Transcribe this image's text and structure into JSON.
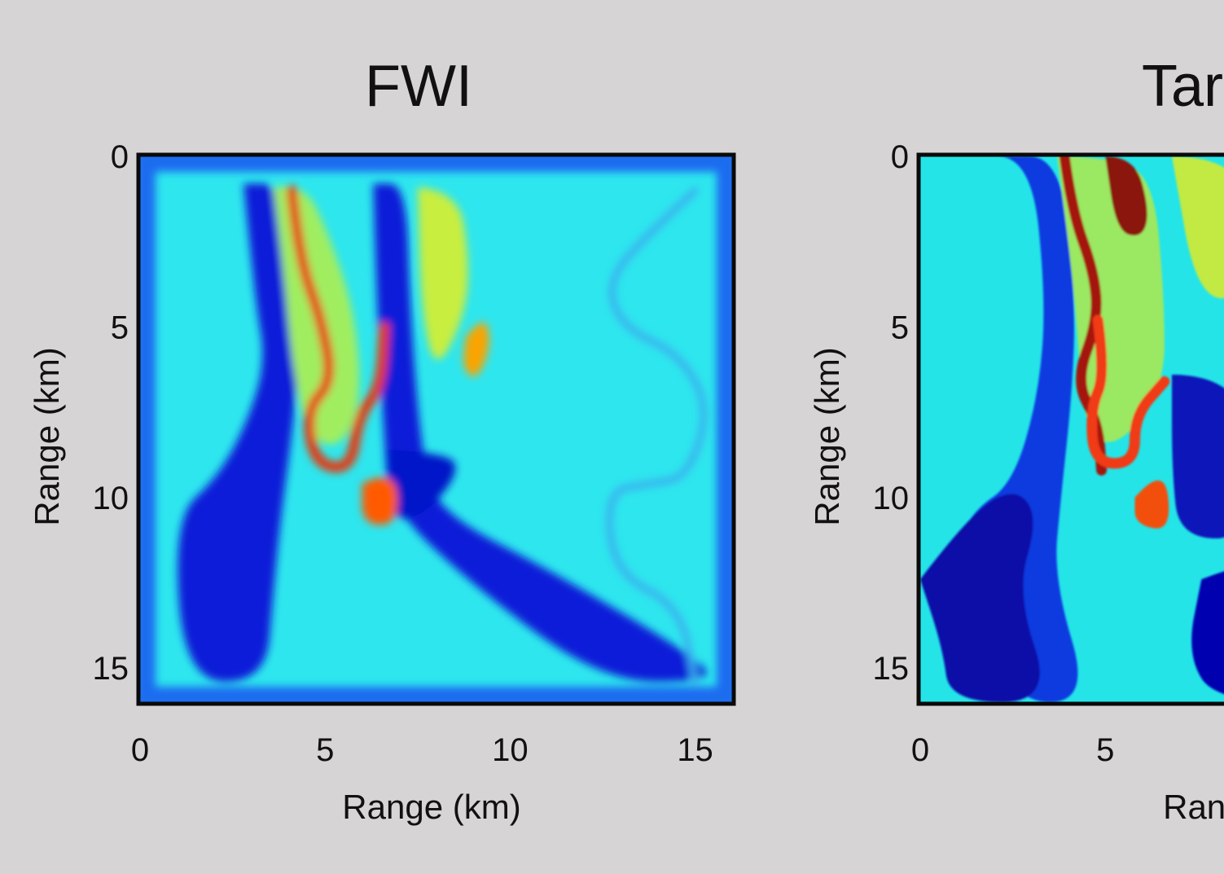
{
  "figure": {
    "background": "#d6d4d4"
  },
  "chart_data": [
    {
      "type": "heatmap",
      "title": "FWI",
      "xlabel": "Range (km)",
      "ylabel": "Range (km)",
      "xlim": [
        0,
        16
      ],
      "ylim": [
        0,
        16
      ],
      "y_inverted": true,
      "xticks": [
        "0",
        "5",
        "10",
        "15"
      ],
      "yticks": [
        "0",
        "5",
        "10",
        "15"
      ],
      "colormap": "jet",
      "background_color": "#2ee6ee",
      "regions": [
        {
          "kind": "frame-margin",
          "color": "#1a6cf0"
        },
        {
          "kind": "band",
          "color": "#0a1ad8",
          "path": [
            [
              2.8,
              0.8
            ],
            [
              3.1,
              4.2
            ],
            [
              3.4,
              6
            ],
            [
              2.9,
              7.8
            ],
            [
              2.1,
              9.4
            ],
            [
              0.9,
              10.6
            ],
            [
              1.2,
              15.4
            ],
            [
              3.4,
              15.4
            ],
            [
              3.6,
              12.8
            ],
            [
              3.8,
              10.6
            ],
            [
              4.1,
              8.2
            ],
            [
              4.3,
              6
            ],
            [
              4.0,
              3.9
            ],
            [
              3.8,
              0.8
            ]
          ]
        },
        {
          "kind": "band",
          "color": "#0a1ad8",
          "path": [
            [
              6.3,
              0.8
            ],
            [
              6.4,
              4.6
            ],
            [
              6.6,
              8.2
            ],
            [
              6.7,
              10.2
            ],
            [
              9.0,
              12.6
            ],
            [
              12.5,
              15.4
            ],
            [
              15.4,
              15.4
            ],
            [
              15.2,
              14.8
            ],
            [
              11.2,
              12.2
            ],
            [
              8.0,
              10.4
            ],
            [
              7.6,
              8.6
            ],
            [
              7.3,
              4.6
            ],
            [
              7.2,
              0.8
            ]
          ]
        },
        {
          "kind": "blob",
          "color": "#0515c8",
          "path": [
            [
              6.7,
              8.6
            ],
            [
              8.4,
              8.7
            ],
            [
              8.6,
              9.3
            ],
            [
              7.8,
              10.4
            ],
            [
              7.0,
              10.7
            ],
            [
              6.8,
              10.2
            ]
          ]
        },
        {
          "kind": "band",
          "color": "#a0ee60",
          "path": [
            [
              3.6,
              0.9
            ],
            [
              4.4,
              0.8
            ],
            [
              5.0,
              2.0
            ],
            [
              5.8,
              4.5
            ],
            [
              6.0,
              7.2
            ],
            [
              5.4,
              8.6
            ],
            [
              4.5,
              8.2
            ],
            [
              4.1,
              6.0
            ],
            [
              3.9,
              3.6
            ]
          ]
        },
        {
          "kind": "band",
          "color": "#c8ee40",
          "path": [
            [
              7.5,
              0.9
            ],
            [
              8.6,
              1.0
            ],
            [
              8.9,
              3.0
            ],
            [
              8.8,
              4.6
            ],
            [
              8.0,
              6.4
            ],
            [
              7.6,
              4.6
            ]
          ]
        },
        {
          "kind": "river",
          "color": "#e6370a",
          "path": [
            [
              4.1,
              1.0
            ],
            [
              4.3,
              3.0
            ],
            [
              4.9,
              4.8
            ],
            [
              5.2,
              6.6
            ],
            [
              4.5,
              7.4
            ],
            [
              4.7,
              9.0
            ],
            [
              5.7,
              9.2
            ],
            [
              5.9,
              7.6
            ],
            [
              6.5,
              6.8
            ],
            [
              6.6,
              5.0
            ]
          ]
        },
        {
          "kind": "blob",
          "color": "#ff5a00",
          "path": [
            [
              6.0,
              9.6
            ],
            [
              6.9,
              9.1
            ],
            [
              7.0,
              10.8
            ],
            [
              6.0,
              10.8
            ]
          ]
        },
        {
          "kind": "blob",
          "color": "#f9a400",
          "path": [
            [
              8.8,
              5.3
            ],
            [
              9.3,
              4.6
            ],
            [
              9.5,
              5.5
            ],
            [
              9.1,
              6.6
            ],
            [
              8.7,
              6.2
            ]
          ]
        },
        {
          "kind": "channel",
          "color": "#3aaeee",
          "path": [
            [
              15.0,
              1.0
            ],
            [
              14.0,
              2.0
            ],
            [
              12.6,
              3.6
            ],
            [
              13.0,
              5.0
            ],
            [
              14.6,
              5.8
            ],
            [
              15.4,
              7.4
            ],
            [
              14.8,
              9.4
            ],
            [
              13.8,
              9.6
            ],
            [
              12.6,
              9.8
            ],
            [
              12.8,
              12.2
            ],
            [
              14.6,
              13.2
            ],
            [
              15.0,
              15.4
            ]
          ]
        }
      ]
    },
    {
      "type": "heatmap",
      "title": "Targ",
      "xlabel": "Range",
      "ylabel": "Range (km)",
      "xlim": [
        0,
        16
      ],
      "ylim": [
        0,
        16
      ],
      "y_inverted": true,
      "xticks": [
        "0",
        "5"
      ],
      "yticks": [
        "0",
        "5",
        "10",
        "15"
      ],
      "colormap": "jet",
      "background_color": "#24e4e8",
      "regions": [
        {
          "kind": "band",
          "color": "#0a3ae0",
          "path": [
            [
              2.1,
              0.0
            ],
            [
              3.0,
              0.0
            ],
            [
              3.4,
              4.2
            ],
            [
              3.2,
              7.0
            ],
            [
              2.5,
              9.6
            ],
            [
              1.4,
              10.4
            ],
            [
              0.7,
              12.0
            ],
            [
              2.4,
              16
            ],
            [
              4.6,
              16
            ],
            [
              3.6,
              12.4
            ],
            [
              3.8,
              10.0
            ],
            [
              4.1,
              7.0
            ],
            [
              4.2,
              4.2
            ],
            [
              3.8,
              0.0
            ]
          ]
        },
        {
          "kind": "band",
          "color": "#0c0ea8",
          "path": [
            [
              0.0,
              12.4
            ],
            [
              1.4,
              10.4
            ],
            [
              2.6,
              9.7
            ],
            [
              3.2,
              10.6
            ],
            [
              2.6,
              12.8
            ],
            [
              3.6,
              16
            ],
            [
              0.8,
              16
            ],
            [
              0.6,
              14.4
            ]
          ]
        },
        {
          "kind": "band",
          "color": "#0000b0",
          "path": [
            [
              7.6,
              12.4
            ],
            [
              9.0,
              11.8
            ],
            [
              12.0,
              11.6
            ],
            [
              12.0,
              16
            ],
            [
              8.0,
              16
            ],
            [
              7.2,
              14.6
            ]
          ]
        },
        {
          "kind": "band",
          "color": "#9be862",
          "path": [
            [
              3.7,
              0.0
            ],
            [
              4.9,
              0.0
            ],
            [
              6.3,
              0.5
            ],
            [
              6.6,
              4.2
            ],
            [
              6.6,
              6.8
            ],
            [
              5.3,
              8.6
            ],
            [
              4.4,
              8.0
            ],
            [
              4.2,
              4.2
            ]
          ]
        },
        {
          "kind": "band",
          "color": "#c2ea42",
          "path": [
            [
              6.8,
              0.0
            ],
            [
              9.0,
              0.0
            ],
            [
              9.0,
              4.0
            ],
            [
              7.5,
              4.3
            ]
          ]
        },
        {
          "kind": "river",
          "color": "#a4180c",
          "path": [
            [
              3.9,
              0.0
            ],
            [
              4.1,
              1.6
            ],
            [
              4.7,
              3.4
            ],
            [
              4.8,
              4.8
            ],
            [
              4.2,
              6.6
            ],
            [
              4.8,
              7.8
            ],
            [
              4.9,
              9.2
            ]
          ]
        },
        {
          "kind": "river",
          "color": "#f03a12",
          "path": [
            [
              4.8,
              4.8
            ],
            [
              5.0,
              6.4
            ],
            [
              4.6,
              7.4
            ],
            [
              4.7,
              9.0
            ],
            [
              5.8,
              9.0
            ],
            [
              5.8,
              7.6
            ],
            [
              6.6,
              6.6
            ]
          ]
        },
        {
          "kind": "blob",
          "color": "#8a1408",
          "path": [
            [
              5.0,
              0.0
            ],
            [
              5.8,
              0.0
            ],
            [
              6.2,
              1.6
            ],
            [
              6.0,
              2.4
            ],
            [
              5.3,
              2.2
            ]
          ]
        },
        {
          "kind": "blob",
          "color": "#f2500e",
          "path": [
            [
              5.8,
              10.0
            ],
            [
              6.6,
              9.0
            ],
            [
              6.8,
              11.0
            ],
            [
              5.8,
              10.8
            ]
          ]
        },
        {
          "kind": "blob",
          "color": "#0a14b8",
          "path": [
            [
              6.8,
              6.4
            ],
            [
              9.0,
              6.4
            ],
            [
              9.0,
              11.2
            ],
            [
              7.0,
              11.2
            ],
            [
              6.8,
              9.2
            ]
          ]
        }
      ]
    }
  ]
}
